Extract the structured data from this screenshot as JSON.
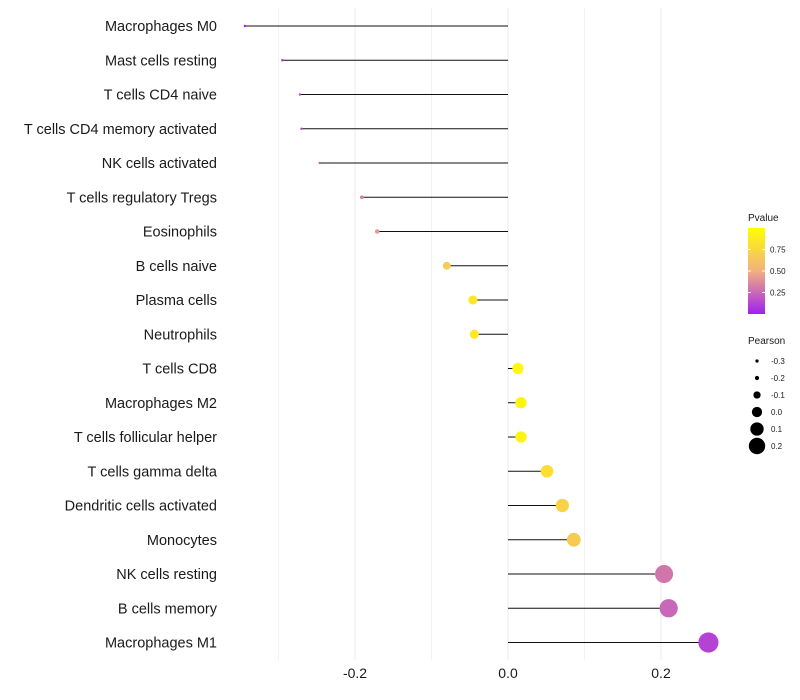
{
  "chart_data": {
    "type": "lollipop",
    "title": "",
    "xlabel": "",
    "ylabel": "",
    "xlim": [
      -0.345,
      0.275
    ],
    "x_ticks": [
      -0.2,
      0.0,
      0.2
    ],
    "x_tick_labels": [
      "-0.2",
      "0.0",
      "0.2"
    ],
    "grid": true,
    "categories": [
      "Macrophages M0",
      "Mast cells resting",
      "T cells CD4 naive",
      "T cells CD4 memory activated",
      "NK cells activated",
      "T cells regulatory  Tregs",
      "Eosinophils",
      "B cells naive",
      "Plasma cells",
      "Neutrophils",
      "T cells CD8",
      "Macrophages M2",
      "T cells follicular helper",
      "T cells gamma delta",
      "Dendritic cells activated",
      "Monocytes",
      "NK cells resting",
      "B cells memory",
      "Macrophages M1"
    ],
    "pearson": [
      -0.344,
      -0.295,
      -0.272,
      -0.27,
      -0.246,
      -0.191,
      -0.171,
      -0.08,
      -0.046,
      -0.044,
      0.013,
      0.017,
      0.017,
      0.051,
      0.071,
      0.086,
      0.204,
      0.21,
      0.262
    ],
    "pvalue": [
      0.01,
      0.05,
      0.13,
      0.13,
      0.18,
      0.34,
      0.42,
      0.68,
      0.85,
      0.86,
      0.96,
      0.93,
      0.93,
      0.79,
      0.72,
      0.67,
      0.3,
      0.25,
      0.12
    ],
    "legend_pvalue": {
      "title": "Pvalue",
      "ticks": [
        0.25,
        0.5,
        0.75
      ],
      "tick_labels": [
        "0.25",
        "0.50",
        "0.75"
      ],
      "range": [
        0.0,
        1.0
      ],
      "colors": [
        "#a020f0",
        "#f2b080",
        "#ffff00"
      ],
      "position": "right"
    },
    "legend_pearson": {
      "title": "Pearson",
      "values": [
        -0.3,
        -0.2,
        -0.1,
        0.0,
        0.1,
        0.2
      ],
      "labels": [
        "-0.3",
        "-0.2",
        "-0.1",
        "0.0",
        "0.1",
        "0.2"
      ],
      "position": "right"
    }
  }
}
